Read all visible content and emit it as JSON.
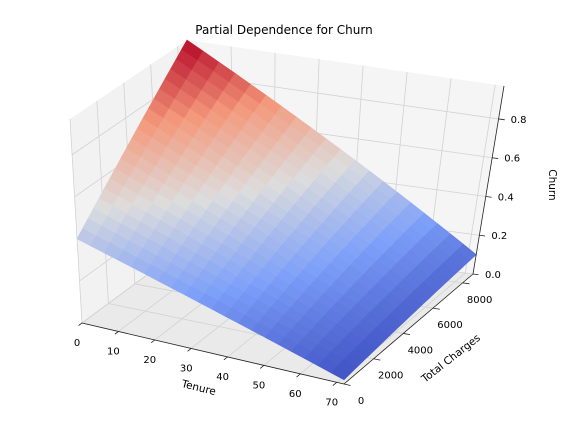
{
  "chart_data": {
    "type": "surface",
    "title": "Partial Dependence for Churn",
    "xlabel": "Tenure",
    "ylabel": "Total Charges",
    "zlabel": "Churn",
    "xlim": [
      0,
      72
    ],
    "ylim": [
      0,
      8700
    ],
    "zlim": [
      0,
      0.97
    ],
    "x_ticks": [
      "0",
      "10",
      "20",
      "30",
      "40",
      "50",
      "60",
      "70"
    ],
    "y_ticks": [
      "0",
      "2000",
      "4000",
      "6000",
      "8000"
    ],
    "z_ticks": [
      "0.0",
      "0.2",
      "0.4",
      "0.6",
      "0.8"
    ],
    "grid": true,
    "colormap": "coolwarm",
    "corner_values": [
      {
        "tenure": 0,
        "total_charges": 0,
        "churn": 0.4
      },
      {
        "tenure": 0,
        "total_charges": 8700,
        "churn": 0.97
      },
      {
        "tenure": 72,
        "total_charges": 0,
        "churn": 0.02
      },
      {
        "tenure": 72,
        "total_charges": 8700,
        "churn": 0.1
      }
    ],
    "grid_size": 20
  }
}
